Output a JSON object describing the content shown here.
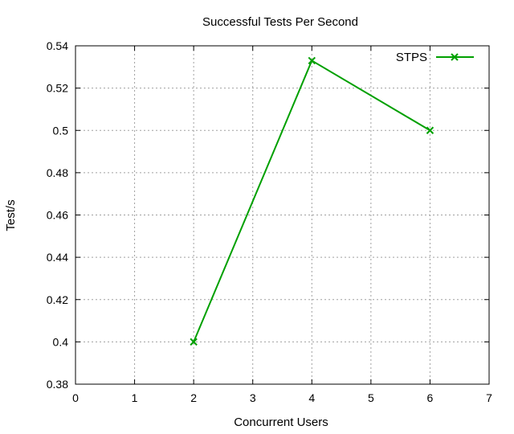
{
  "chart_data": {
    "type": "line",
    "title": "Successful Tests Per Second",
    "xlabel": "Concurrent Users",
    "ylabel": "Test/s",
    "xlim": [
      0,
      7
    ],
    "ylim": [
      0.38,
      0.54
    ],
    "x_ticks": [
      "0",
      "1",
      "2",
      "3",
      "4",
      "5",
      "6",
      "7"
    ],
    "y_ticks": [
      "0.38",
      "0.4",
      "0.42",
      "0.44",
      "0.46",
      "0.48",
      "0.5",
      "0.52",
      "0.54"
    ],
    "grid": true,
    "legend_position": "top-right",
    "series": [
      {
        "name": "STPS",
        "color": "#00a000",
        "marker": "x",
        "x": [
          2,
          4,
          6
        ],
        "y": [
          0.4,
          0.533,
          0.5
        ]
      }
    ]
  }
}
